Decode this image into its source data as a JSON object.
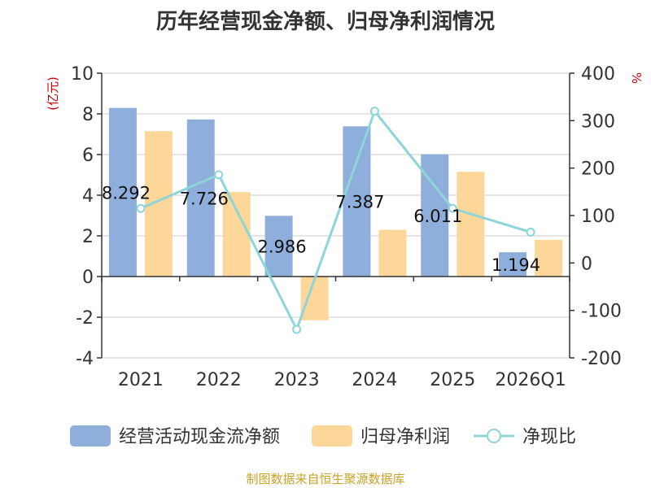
{
  "title": "历年经营现金净额、归母净利润情况",
  "source": "制图数据来自恒生聚源数据库",
  "chart_data": {
    "type": "bar",
    "categories": [
      "2021",
      "2022",
      "2023",
      "2024",
      "2025",
      "2026Q1"
    ],
    "y_left": {
      "unit": "(亿元)",
      "ylim": [
        -4,
        10
      ],
      "ticks": [
        10,
        8,
        6,
        4,
        2,
        0,
        -2,
        -4
      ]
    },
    "y_right": {
      "unit": "%",
      "ylim": [
        -200,
        400
      ],
      "ticks": [
        400,
        300,
        200,
        100,
        0,
        -100,
        -200
      ]
    },
    "series": [
      {
        "name": "经营活动现金流净额",
        "type": "bar",
        "axis": "left",
        "color": "#8eaedb",
        "values": [
          8.292,
          7.726,
          2.986,
          7.387,
          6.011,
          1.194
        ],
        "labels": [
          "8.292",
          "7.726",
          "2.986",
          "7.387",
          "6.011",
          "1.194"
        ]
      },
      {
        "name": "归母净利润",
        "type": "bar",
        "axis": "left",
        "color": "#fdd699",
        "values": [
          7.15,
          4.15,
          -2.15,
          2.3,
          5.15,
          1.8
        ]
      },
      {
        "name": "净现比",
        "type": "line",
        "axis": "right",
        "color": "#8dd5d9",
        "values": [
          115,
          186,
          -140,
          320,
          115,
          65
        ]
      }
    ],
    "grid": true,
    "legend_position": "bottom"
  }
}
